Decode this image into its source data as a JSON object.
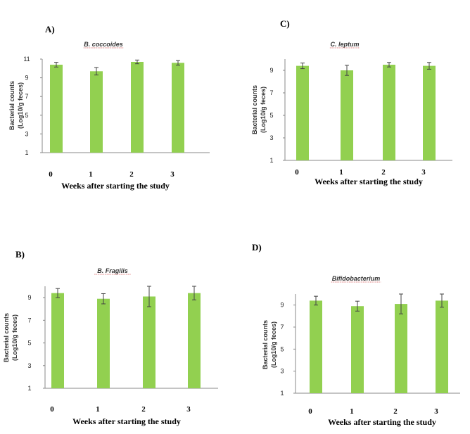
{
  "chart_data": [
    {
      "type": "bar",
      "panel": "A)",
      "title": "B. coccoides",
      "categories": [
        "0",
        "1",
        "2",
        "3"
      ],
      "values": [
        10.4,
        9.7,
        10.7,
        10.6
      ],
      "errors": [
        0.25,
        0.4,
        0.2,
        0.25
      ],
      "xlabel": "Weeks after starting the study",
      "ylabel_lines": [
        "Bacterial counts",
        "(Log10/g feces)"
      ],
      "yticks": [
        1,
        3,
        5,
        7,
        9,
        11
      ],
      "ylim": [
        1,
        11
      ],
      "grid": false,
      "bar_color": "#92d050"
    },
    {
      "type": "bar",
      "panel": "C)",
      "title": "C. leptum",
      "categories": [
        "0",
        "1",
        "2",
        "3"
      ],
      "values": [
        9.4,
        9.0,
        9.5,
        9.4
      ],
      "errors": [
        0.25,
        0.45,
        0.2,
        0.3
      ],
      "xlabel": "Weeks after starting the study",
      "ylabel_lines": [
        "Bacterial counts",
        "(Log10/g feces)"
      ],
      "yticks": [
        1,
        3,
        5,
        7,
        9
      ],
      "ylim": [
        1,
        10
      ],
      "grid": false,
      "bar_color": "#92d050"
    },
    {
      "type": "bar",
      "panel": "B)",
      "title": "B. Fragilis",
      "categories": [
        "0",
        "1",
        "2",
        "3"
      ],
      "values": [
        9.4,
        8.9,
        9.1,
        9.4
      ],
      "errors": [
        0.4,
        0.45,
        0.9,
        0.6
      ],
      "xlabel": "Weeks after starting the study",
      "ylabel_lines": [
        "Bacterial counts",
        "(Log10/g feces)"
      ],
      "yticks": [
        1,
        3,
        5,
        7,
        9
      ],
      "ylim": [
        1,
        10
      ],
      "grid": false,
      "bar_color": "#92d050"
    },
    {
      "type": "bar",
      "panel": "D)",
      "title": "Bifidobacterium",
      "categories": [
        "0",
        "1",
        "2",
        "3"
      ],
      "values": [
        9.4,
        8.9,
        9.1,
        9.4
      ],
      "errors": [
        0.4,
        0.45,
        0.9,
        0.6
      ],
      "xlabel": "Weeks after starting the study",
      "ylabel_lines": [
        "Bacterial counts",
        "(Log10/g feces)"
      ],
      "yticks": [
        1,
        3,
        5,
        7,
        9
      ],
      "ylim": [
        1,
        10
      ],
      "grid": false,
      "bar_color": "#92d050"
    }
  ]
}
